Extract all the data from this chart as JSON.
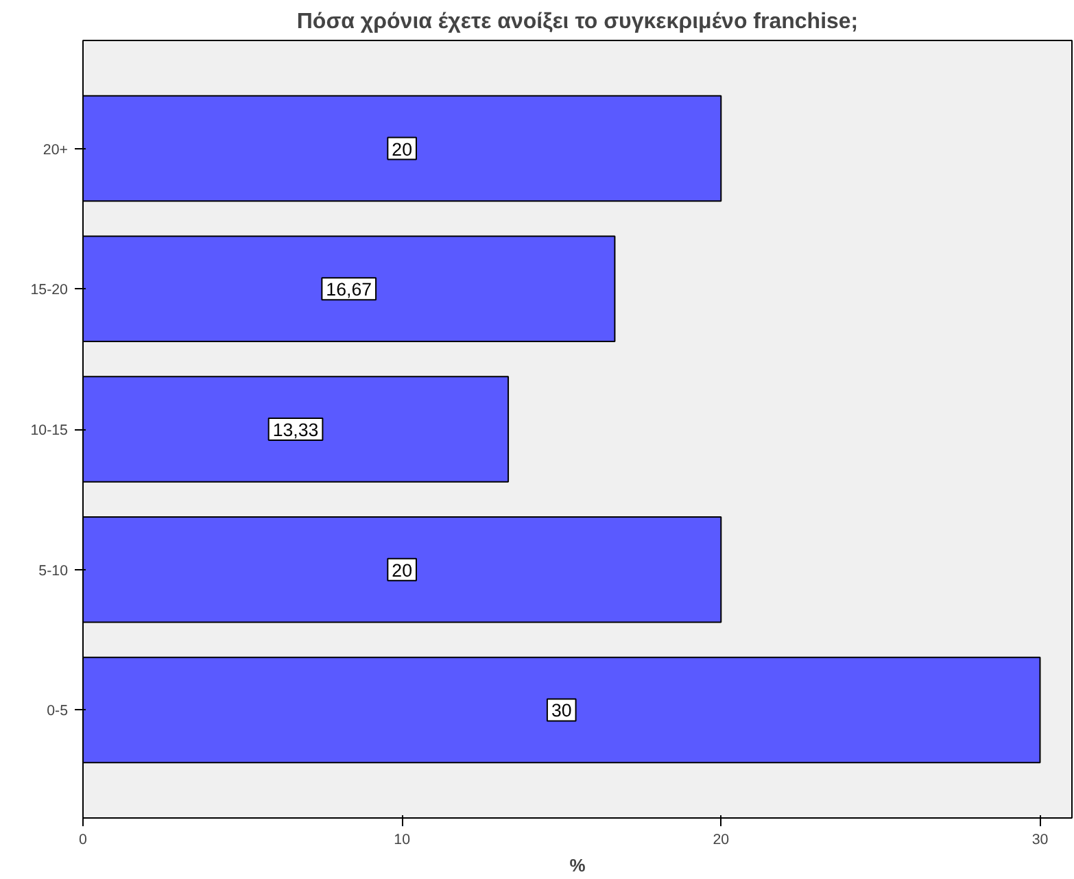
{
  "chart_data": {
    "type": "bar",
    "orientation": "horizontal",
    "title": "Πόσα χρόνια έχετε ανοίξει το συγκεκριμένο franchise;",
    "xlabel": "%",
    "categories": [
      "20+",
      "15-20",
      "10-15",
      "5-10",
      "0-5"
    ],
    "values": [
      20,
      16.67,
      13.33,
      20,
      30
    ],
    "value_labels": [
      "20",
      "16,67",
      "13,33",
      "20",
      "30"
    ],
    "color": "#5a5aff",
    "xlim": [
      0,
      31
    ],
    "xticks": [
      0,
      10,
      20,
      30
    ],
    "grid": false
  }
}
